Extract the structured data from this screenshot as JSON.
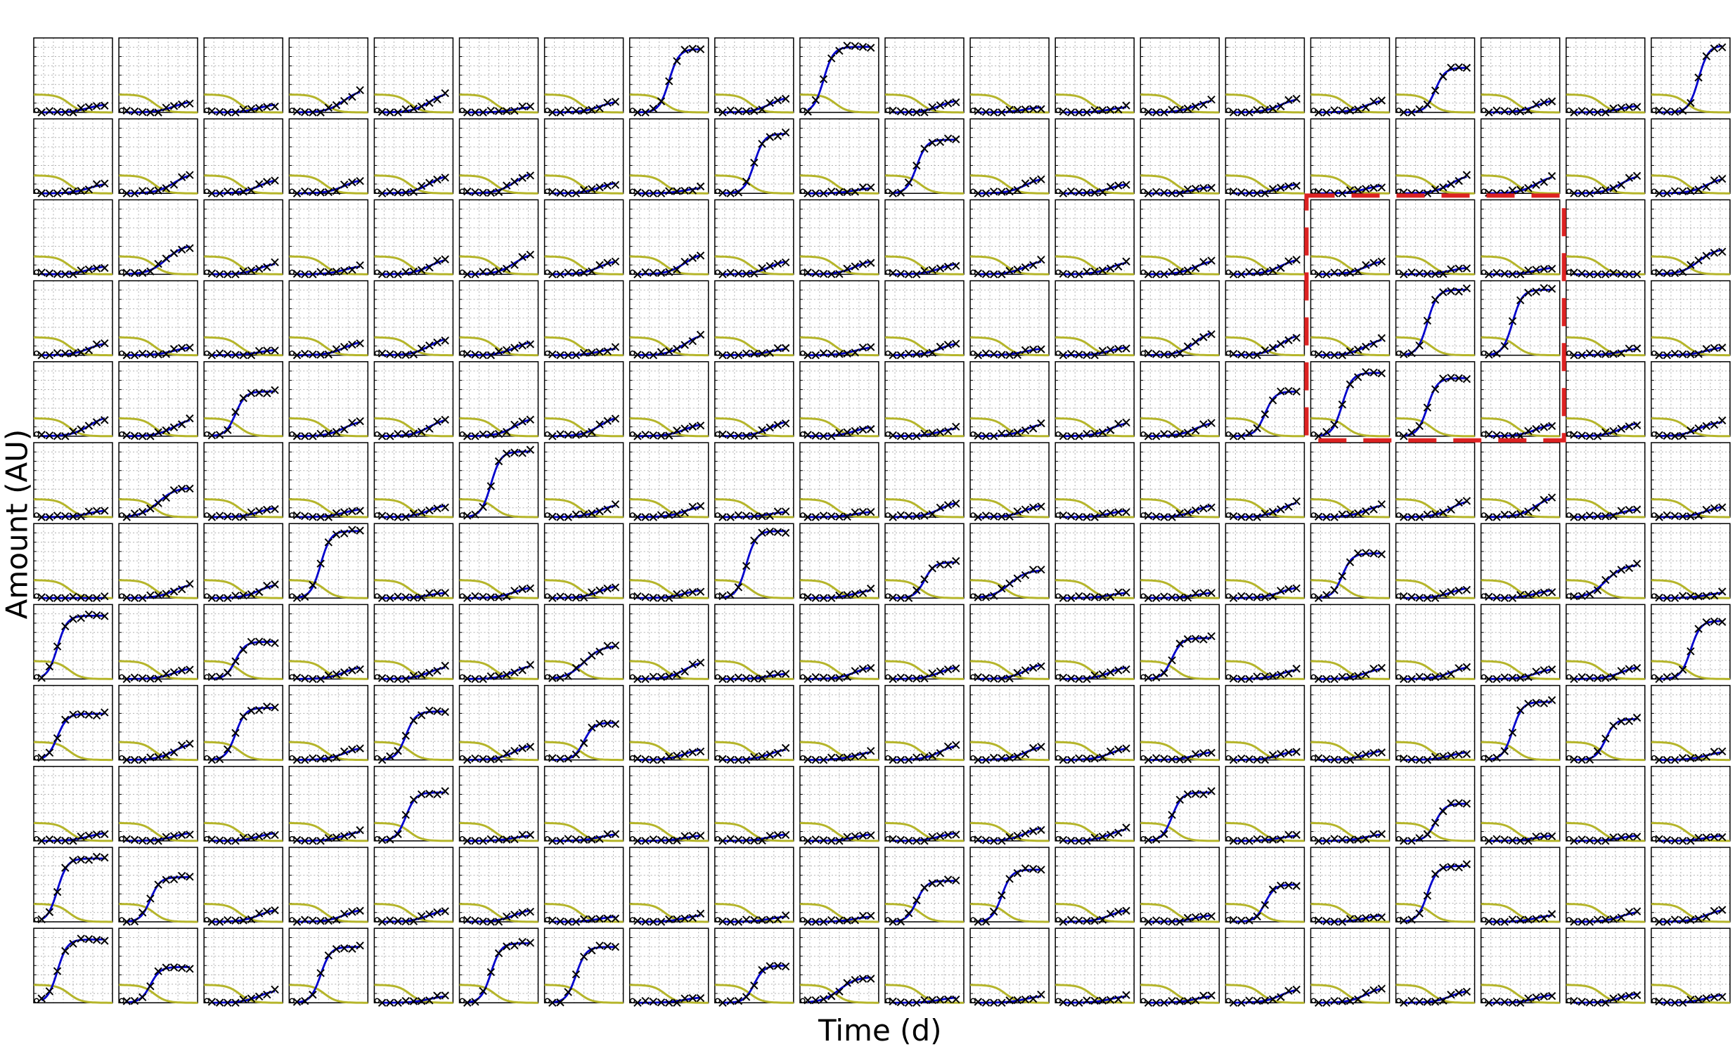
{
  "chart_data": {
    "type": "line",
    "layout": "small-multiples",
    "rows": 12,
    "cols": 20,
    "xlabel": "Time (d)",
    "ylabel": "Amount (AU)",
    "xlim": [
      0,
      10
    ],
    "ylim": [
      0,
      1.0
    ],
    "grid": true,
    "colors": {
      "fit_curve": "#0000cc",
      "observations": "#000000",
      "decay_curve": "#b5b52a",
      "highlight_box": "#dd2222",
      "grid": "#b0b0b0"
    },
    "decay_curve": {
      "description_free": true,
      "start_level": 0.24,
      "midpoint": 4.5,
      "steepness": 1.3
    },
    "highlight": {
      "row_start": 2,
      "row_end": 4,
      "col_start": 15,
      "col_end": 17,
      "style": "dashed"
    },
    "panel_levels": [
      [
        0.12,
        0.16,
        0.12,
        0.32,
        0.28,
        0.08,
        0.16,
        0.85,
        0.22,
        0.88,
        0.18,
        0.08,
        0.08,
        0.18,
        0.2,
        0.18,
        0.6,
        0.18,
        0.1,
        0.9
      ],
      [
        0.14,
        0.28,
        0.2,
        0.2,
        0.26,
        0.3,
        0.16,
        0.08,
        0.8,
        0.08,
        0.72,
        0.22,
        0.14,
        0.1,
        0.14,
        0.12,
        0.26,
        0.25,
        0.26,
        0.22
      ],
      [
        0.12,
        0.4,
        0.16,
        0.12,
        0.22,
        0.3,
        0.2,
        0.3,
        0.2,
        0.2,
        0.16,
        0.2,
        0.18,
        0.2,
        0.22,
        0.2,
        0.1,
        0.1,
        0.0,
        0.35
      ],
      [
        0.18,
        0.12,
        0.08,
        0.2,
        0.25,
        0.2,
        0.1,
        0.3,
        0.1,
        0.12,
        0.18,
        0.1,
        0.12,
        0.35,
        0.3,
        0.24,
        0.88,
        0.88,
        0.1,
        0.12
      ],
      [
        0.28,
        0.25,
        0.6,
        0.22,
        0.25,
        0.26,
        0.28,
        0.18,
        0.22,
        0.14,
        0.12,
        0.18,
        0.2,
        0.2,
        0.6,
        0.85,
        0.78,
        0.18,
        0.2,
        0.2
      ],
      [
        0.1,
        0.4,
        0.14,
        0.12,
        0.18,
        0.88,
        0.18,
        0.16,
        0.08,
        0.08,
        0.22,
        0.18,
        0.1,
        0.18,
        0.22,
        0.18,
        0.24,
        0.3,
        0.12,
        0.16
      ],
      [
        0.0,
        0.2,
        0.2,
        0.9,
        0.08,
        0.16,
        0.18,
        0.12,
        0.9,
        0.12,
        0.48,
        0.38,
        0.08,
        0.08,
        0.16,
        0.6,
        0.15,
        0.12,
        0.45,
        0.08
      ],
      [
        0.85,
        0.16,
        0.5,
        0.18,
        0.18,
        0.2,
        0.45,
        0.25,
        0.08,
        0.18,
        0.18,
        0.22,
        0.18,
        0.55,
        0.14,
        0.16,
        0.18,
        0.15,
        0.18,
        0.78
      ],
      [
        0.62,
        0.24,
        0.7,
        0.18,
        0.65,
        0.22,
        0.5,
        0.16,
        0.16,
        0.12,
        0.22,
        0.2,
        0.18,
        0.12,
        0.14,
        0.14,
        0.12,
        0.78,
        0.55,
        0.12
      ],
      [
        0.12,
        0.12,
        0.12,
        0.14,
        0.65,
        0.08,
        0.1,
        0.08,
        0.1,
        0.1,
        0.12,
        0.2,
        0.18,
        0.65,
        0.08,
        0.1,
        0.5,
        0.08,
        0.08,
        0.08
      ],
      [
        0.85,
        0.6,
        0.18,
        0.18,
        0.18,
        0.18,
        0.08,
        0.1,
        0.08,
        0.08,
        0.55,
        0.7,
        0.18,
        0.1,
        0.5,
        0.1,
        0.75,
        0.1,
        0.15,
        0.18
      ],
      [
        0.85,
        0.48,
        0.18,
        0.75,
        0.1,
        0.8,
        0.75,
        0.08,
        0.5,
        0.35,
        0.08,
        0.1,
        0.1,
        0.1,
        0.2,
        0.22,
        0.18,
        0.12,
        0.14,
        0.12
      ]
    ],
    "panel_midpoints": [
      [
        7,
        7,
        7,
        7,
        7,
        7,
        7,
        5,
        7,
        3,
        7,
        7,
        7,
        7,
        7,
        7,
        5,
        7,
        7,
        6
      ],
      [
        7,
        7,
        7,
        7,
        7,
        7,
        7,
        7,
        5,
        7,
        4,
        7,
        7,
        7,
        7,
        7,
        7,
        7,
        7,
        7
      ],
      [
        7,
        6,
        7,
        7,
        7,
        7,
        7,
        7,
        7,
        7,
        7,
        7,
        7,
        7,
        7,
        7,
        7,
        7,
        7,
        6
      ],
      [
        7,
        7,
        7,
        7,
        7,
        7,
        7,
        7,
        7,
        7,
        7,
        7,
        7,
        7,
        7,
        7,
        4,
        4,
        7,
        7
      ],
      [
        7,
        7,
        4,
        7,
        7,
        7,
        7,
        7,
        7,
        7,
        7,
        7,
        7,
        7,
        5,
        4,
        4,
        7,
        7,
        6
      ],
      [
        7,
        5,
        7,
        7,
        7,
        4,
        7,
        7,
        7,
        7,
        7,
        7,
        7,
        7,
        7,
        7,
        7,
        7,
        7,
        7
      ],
      [
        7,
        7,
        7,
        4,
        7,
        7,
        7,
        7,
        4,
        7,
        5,
        5,
        7,
        7,
        7,
        4,
        7,
        7,
        5,
        7
      ],
      [
        3,
        7,
        4,
        7,
        7,
        7,
        5,
        7,
        7,
        7,
        7,
        7,
        7,
        4,
        7,
        7,
        7,
        7,
        7,
        5
      ],
      [
        3,
        7,
        4,
        7,
        4,
        7,
        5,
        7,
        7,
        7,
        7,
        7,
        7,
        7,
        7,
        7,
        7,
        4,
        5,
        7
      ],
      [
        7,
        7,
        7,
        7,
        4,
        7,
        7,
        7,
        7,
        7,
        7,
        7,
        7,
        4,
        7,
        7,
        5,
        7,
        7,
        7
      ],
      [
        3,
        4,
        7,
        7,
        7,
        7,
        7,
        7,
        7,
        7,
        4,
        4,
        7,
        7,
        5,
        7,
        4,
        7,
        7,
        7
      ],
      [
        3,
        4,
        7,
        4,
        7,
        4,
        4,
        7,
        5,
        5,
        7,
        7,
        7,
        7,
        7,
        7,
        7,
        7,
        7,
        7
      ]
    ],
    "observation_times": [
      1,
      2,
      3,
      4,
      5,
      6,
      7,
      8,
      9
    ]
  }
}
